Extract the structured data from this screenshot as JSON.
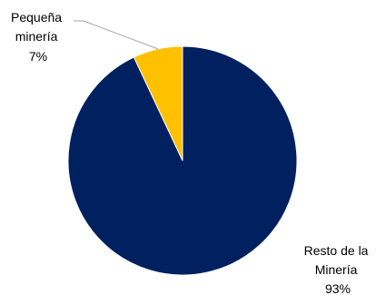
{
  "chart_data": {
    "type": "pie",
    "title": "",
    "slices": [
      {
        "label_lines": [
          "Pequeña",
          "minería"
        ],
        "value_label": "7%",
        "value": 7,
        "color": "#FFC000"
      },
      {
        "label_lines": [
          "Resto de la",
          "Minería"
        ],
        "value_label": "93%",
        "value": 93,
        "color": "#002060"
      }
    ],
    "start_angle_deg": 0,
    "direction": "counterclockwise",
    "leader_line_color": "#A6A6A6",
    "legend": "none"
  }
}
